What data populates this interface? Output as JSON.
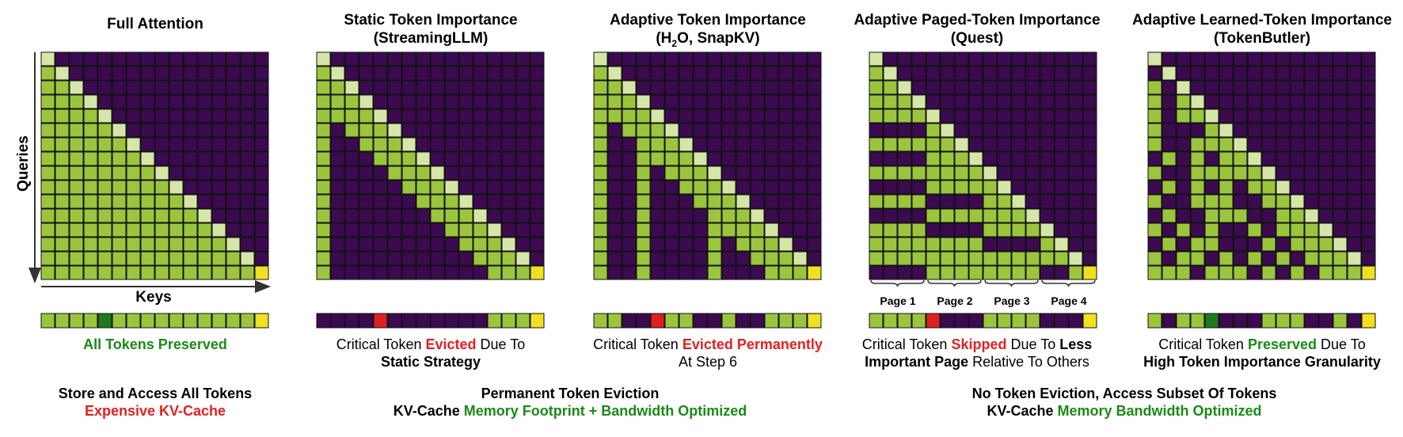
{
  "colors": {
    "purple": "#3b0a4f",
    "light_green": "#9bc53d",
    "pale_green": "#d6e6a8",
    "yellow": "#f0e020",
    "red": "#e02020",
    "dark_green": "#1f7a1f",
    "text_green": "#1a8a17",
    "text_red": "#e51f1f"
  },
  "axes": {
    "queries_label": "Queries",
    "keys_label": "Keys"
  },
  "panels": [
    {
      "title_line1": "Full Attention",
      "title_line2": "",
      "caption": [
        "All Tokens Preserved"
      ],
      "pattern": "full",
      "token_bar": [
        "G",
        "G",
        "G",
        "G",
        "D",
        "G",
        "G",
        "G",
        "G",
        "G",
        "G",
        "G",
        "G",
        "G",
        "G",
        "Y"
      ]
    },
    {
      "title_line1": "Static Token Importance",
      "title_line2": "(StreamingLLM)",
      "caption": [
        "Critical Token",
        "Evicted",
        "Due To",
        "Static Strategy"
      ],
      "pattern": "streaming",
      "token_bar": [
        "P",
        "P",
        "P",
        "P",
        "R",
        "P",
        "P",
        "P",
        "P",
        "P",
        "P",
        "P",
        "G",
        "G",
        "G",
        "Y"
      ]
    },
    {
      "title_line1": "Adaptive Token Importance",
      "title_line2_pre": "(H",
      "title_line2_sub": "2",
      "title_line2_post": "O, SnapKV)",
      "caption": [
        "Critical Token",
        "Evicted Permanently",
        "At Step 6"
      ],
      "pattern": "h2o",
      "token_bar": [
        "G",
        "G",
        "P",
        "P",
        "R",
        "G",
        "G",
        "P",
        "P",
        "G",
        "P",
        "P",
        "G",
        "G",
        "G",
        "Y"
      ]
    },
    {
      "title_line1": "Adaptive Paged-Token Importance",
      "title_line2": "(Quest)",
      "caption": [
        "Critical Token",
        "Skipped",
        "Due To",
        "Less",
        "Important Page",
        "Relative To Others"
      ],
      "pages": [
        "Page 1",
        "Page 2",
        "Page 3",
        "Page 4"
      ],
      "pattern": "quest",
      "token_bar": [
        "G",
        "G",
        "G",
        "G",
        "R",
        "P",
        "P",
        "P",
        "G",
        "G",
        "G",
        "G",
        "P",
        "P",
        "P",
        "Y"
      ]
    },
    {
      "title_line1": "Adaptive Learned-Token Importance",
      "title_line2": "(TokenButler)",
      "caption": [
        "Critical Token",
        "Preserved",
        "Due To",
        "High Token Importance Granularity"
      ],
      "pattern": "butler",
      "token_bar": [
        "G",
        "P",
        "G",
        "G",
        "D",
        "P",
        "P",
        "P",
        "G",
        "G",
        "G",
        "P",
        "P",
        "G",
        "P",
        "Y"
      ]
    }
  ],
  "footers": [
    {
      "line1": "Store and Access All Tokens",
      "line2": "Expensive KV-Cache"
    },
    {
      "line1": "Permanent Token Eviction",
      "line2_pre": "KV-Cache",
      "line2_hl": "Memory Footprint + Bandwidth Optimized"
    },
    {
      "line1": "No Token Eviction, Access Subset Of Tokens",
      "line2_pre": "KV-Cache",
      "line2_hl": "Memory Bandwidth Optimized"
    }
  ]
}
